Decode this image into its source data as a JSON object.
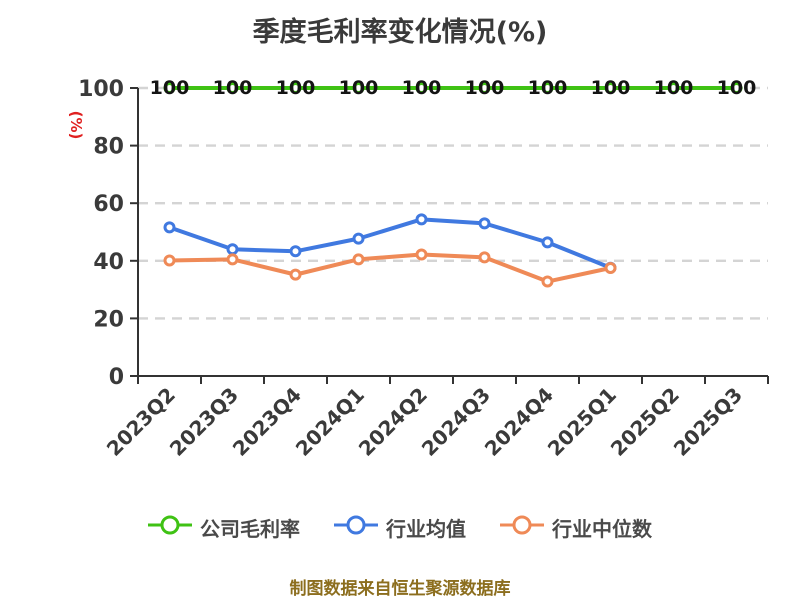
{
  "title": "季度毛利率变化情况(%)",
  "y_axis_name": "(%)",
  "footer": "制图数据来自恒生聚源数据库",
  "colors": {
    "background": "#ffffff",
    "title": "#3a3a3a",
    "axis": "#333333",
    "tick_label": "#3a3a3a",
    "grid": "#d4d4d4",
    "data_label": "#141414",
    "y_name": "#e02020",
    "legend_text": "#4a4a4a",
    "footer_text": "#8c6e1e",
    "marker_fill": "#ffffff",
    "series_green": "#3fc214",
    "series_blue": "#4079e0",
    "series_orange": "#ef8a57"
  },
  "chart_data": {
    "type": "line",
    "title": "季度毛利率变化情况(%)",
    "ylabel": "(%)",
    "ylim": [
      0,
      100
    ],
    "yticks": [
      0,
      20,
      40,
      60,
      80,
      100
    ],
    "grid": "dashed-horizontal",
    "legend_position": "bottom",
    "categories": [
      "2023Q2",
      "2023Q3",
      "2023Q4",
      "2024Q1",
      "2024Q2",
      "2024Q3",
      "2024Q4",
      "2025Q1",
      "2025Q2",
      "2025Q3"
    ],
    "series": [
      {
        "name": "公司毛利率",
        "color": "#3fc214",
        "show_labels": true,
        "values": [
          100,
          100,
          100,
          100,
          100,
          100,
          100,
          100,
          100,
          100
        ]
      },
      {
        "name": "行业均值",
        "color": "#4079e0",
        "show_labels": false,
        "values": [
          51.6,
          44.0,
          43.3,
          47.7,
          54.4,
          53.0,
          46.4,
          37.6,
          null,
          null
        ]
      },
      {
        "name": "行业中位数",
        "color": "#ef8a57",
        "show_labels": false,
        "values": [
          40.1,
          40.5,
          35.2,
          40.5,
          42.2,
          41.2,
          32.8,
          37.5,
          null,
          null
        ]
      }
    ]
  }
}
